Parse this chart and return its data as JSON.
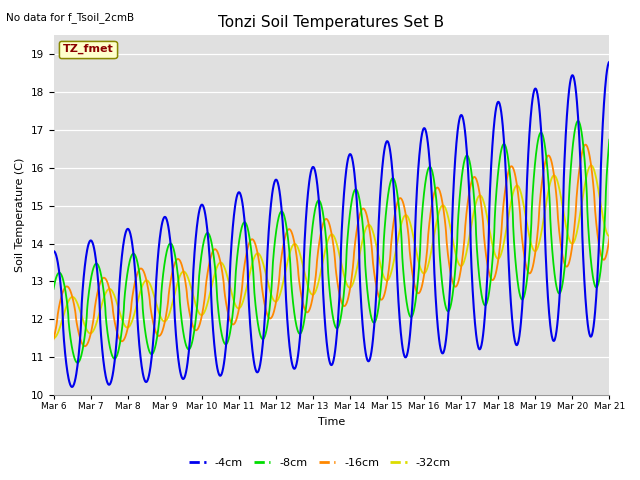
{
  "title": "Tonzi Soil Temperatures Set B",
  "subtitle": "No data for f_Tsoil_2cmB",
  "ylabel": "Soil Temperature (C)",
  "xlabel": "Time",
  "legend_label": "TZ_fmet",
  "ylim": [
    10.0,
    19.5
  ],
  "yticks": [
    10.0,
    11.0,
    12.0,
    13.0,
    14.0,
    15.0,
    16.0,
    17.0,
    18.0,
    19.0
  ],
  "series_colors": {
    "-4cm": "#0000ee",
    "-8cm": "#00dd00",
    "-16cm": "#ff8800",
    "-32cm": "#dddd00"
  },
  "background_color": "#e0e0e0",
  "axes_bg_color": "#f0f0f0",
  "n_days": 15,
  "start_day": 6,
  "samples_per_day": 96,
  "figwidth": 6.4,
  "figheight": 4.8,
  "dpi": 100
}
